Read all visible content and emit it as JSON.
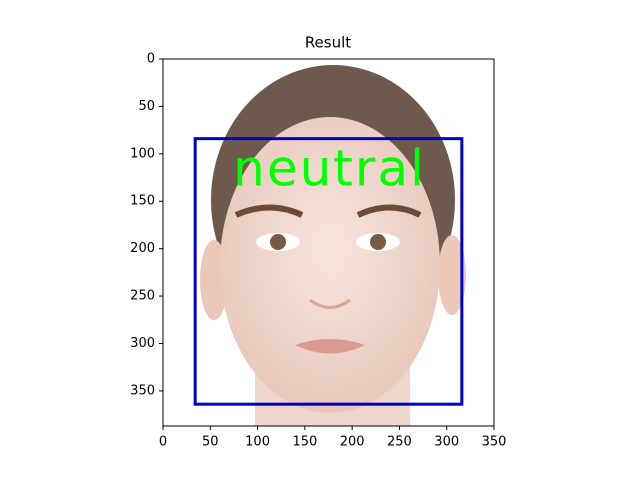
{
  "chart_data": {
    "type": "image",
    "title": "Result",
    "xlim": [
      0,
      350
    ],
    "ylim": [
      387,
      0
    ],
    "xticks": [
      0,
      50,
      100,
      150,
      200,
      250,
      300,
      350
    ],
    "yticks": [
      0,
      50,
      100,
      150,
      200,
      250,
      300,
      350
    ],
    "boxes": [
      {
        "x0": 34,
        "y0": 84,
        "x1": 316,
        "y1": 364,
        "color": "#0000c8",
        "label": "neutral",
        "label_color": "#00ff00"
      }
    ]
  }
}
